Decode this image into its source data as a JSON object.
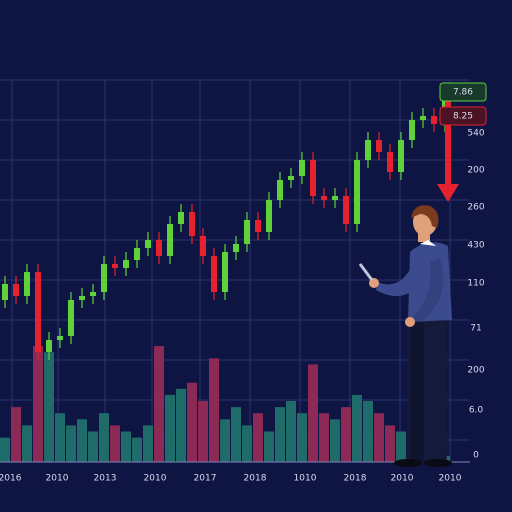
{
  "chart_data": {
    "type": "candlestick",
    "up_color": "#5fd13a",
    "down_color": "#e5222e",
    "open": [
      45,
      49,
      46,
      52,
      32,
      35,
      36,
      45,
      46,
      47,
      54,
      53,
      55,
      58,
      60,
      56,
      64,
      67,
      61,
      56,
      47,
      57,
      59,
      65,
      62,
      70,
      75,
      76,
      80,
      71,
      70,
      71,
      64,
      80,
      85,
      82,
      77,
      85,
      90,
      91,
      89
    ],
    "close": [
      49,
      46,
      52,
      32,
      35,
      36,
      45,
      46,
      47,
      54,
      53,
      55,
      58,
      60,
      56,
      64,
      67,
      61,
      56,
      47,
      57,
      59,
      65,
      62,
      70,
      75,
      76,
      80,
      71,
      70,
      71,
      64,
      80,
      85,
      82,
      77,
      85,
      90,
      91,
      89,
      96
    ],
    "high": [
      51,
      51,
      54,
      54,
      37,
      38,
      47,
      48,
      49,
      56,
      56,
      57,
      60,
      62,
      62,
      66,
      69,
      69,
      63,
      58,
      59,
      61,
      67,
      67,
      72,
      77,
      78,
      82,
      82,
      73,
      73,
      73,
      82,
      87,
      87,
      84,
      87,
      92,
      93,
      93,
      98
    ],
    "low": [
      43,
      44,
      44,
      30,
      30,
      33,
      34,
      43,
      44,
      45,
      51,
      51,
      53,
      56,
      54,
      54,
      62,
      59,
      54,
      45,
      45,
      55,
      57,
      60,
      60,
      68,
      73,
      74,
      69,
      68,
      68,
      62,
      62,
      78,
      80,
      75,
      75,
      83,
      88,
      87,
      87
    ],
    "ylim": [
      0,
      100
    ],
    "volume": [
      20,
      45,
      30,
      95,
      90,
      40,
      30,
      35,
      25,
      40,
      30,
      25,
      20,
      30,
      95,
      55,
      60,
      65,
      50,
      85,
      35,
      45,
      30,
      40,
      25,
      45,
      50,
      40,
      80,
      40,
      35,
      45,
      55,
      50,
      40,
      30,
      25,
      15,
      10,
      5,
      5
    ],
    "volume_ylim": [
      0,
      100
    ],
    "volume_up_color": "#1f6b6a",
    "volume_down_color": "#8c2a55",
    "x_labels": [
      "2016",
      "2010",
      "2013",
      "2010",
      "2017",
      "2018",
      "1010",
      "2018",
      "2010",
      "2010"
    ],
    "right_labels": [
      "540",
      "200",
      "260",
      "430",
      "110",
      "71",
      "200",
      "6.0",
      "0"
    ],
    "price_badges": [
      "7.86",
      "8.25"
    ]
  }
}
